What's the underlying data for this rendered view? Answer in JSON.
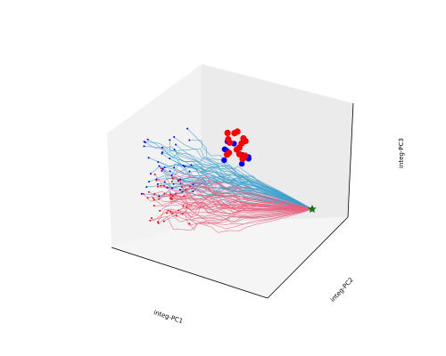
{
  "chart_data": {
    "type": "line3d",
    "title": "",
    "xlabel": "integ-PC1",
    "ylabel": "integ-PC2",
    "zlabel": "integ-PC3",
    "grid": false,
    "legend": "none",
    "series": [
      {
        "trajectory_color": "#3b9fcc",
        "endpoint_color": "#0000ff",
        "bundle_start": [
          350,
          235
        ],
        "bundle_end_center": [
          190,
          185
        ],
        "trajectory_count": 45
      },
      {
        "trajectory_color": "#e8607f",
        "endpoint_color": "#ff0000",
        "bundle_start": [
          350,
          235
        ],
        "bundle_end_center": [
          185,
          225
        ],
        "trajectory_count": 45
      }
    ],
    "cluster": {
      "center": [
        265,
        163
      ],
      "red_count": 16,
      "blue_count": 9
    },
    "start_marker": {
      "shape": "star",
      "color": "#008000",
      "at": [
        350,
        235
      ]
    }
  }
}
